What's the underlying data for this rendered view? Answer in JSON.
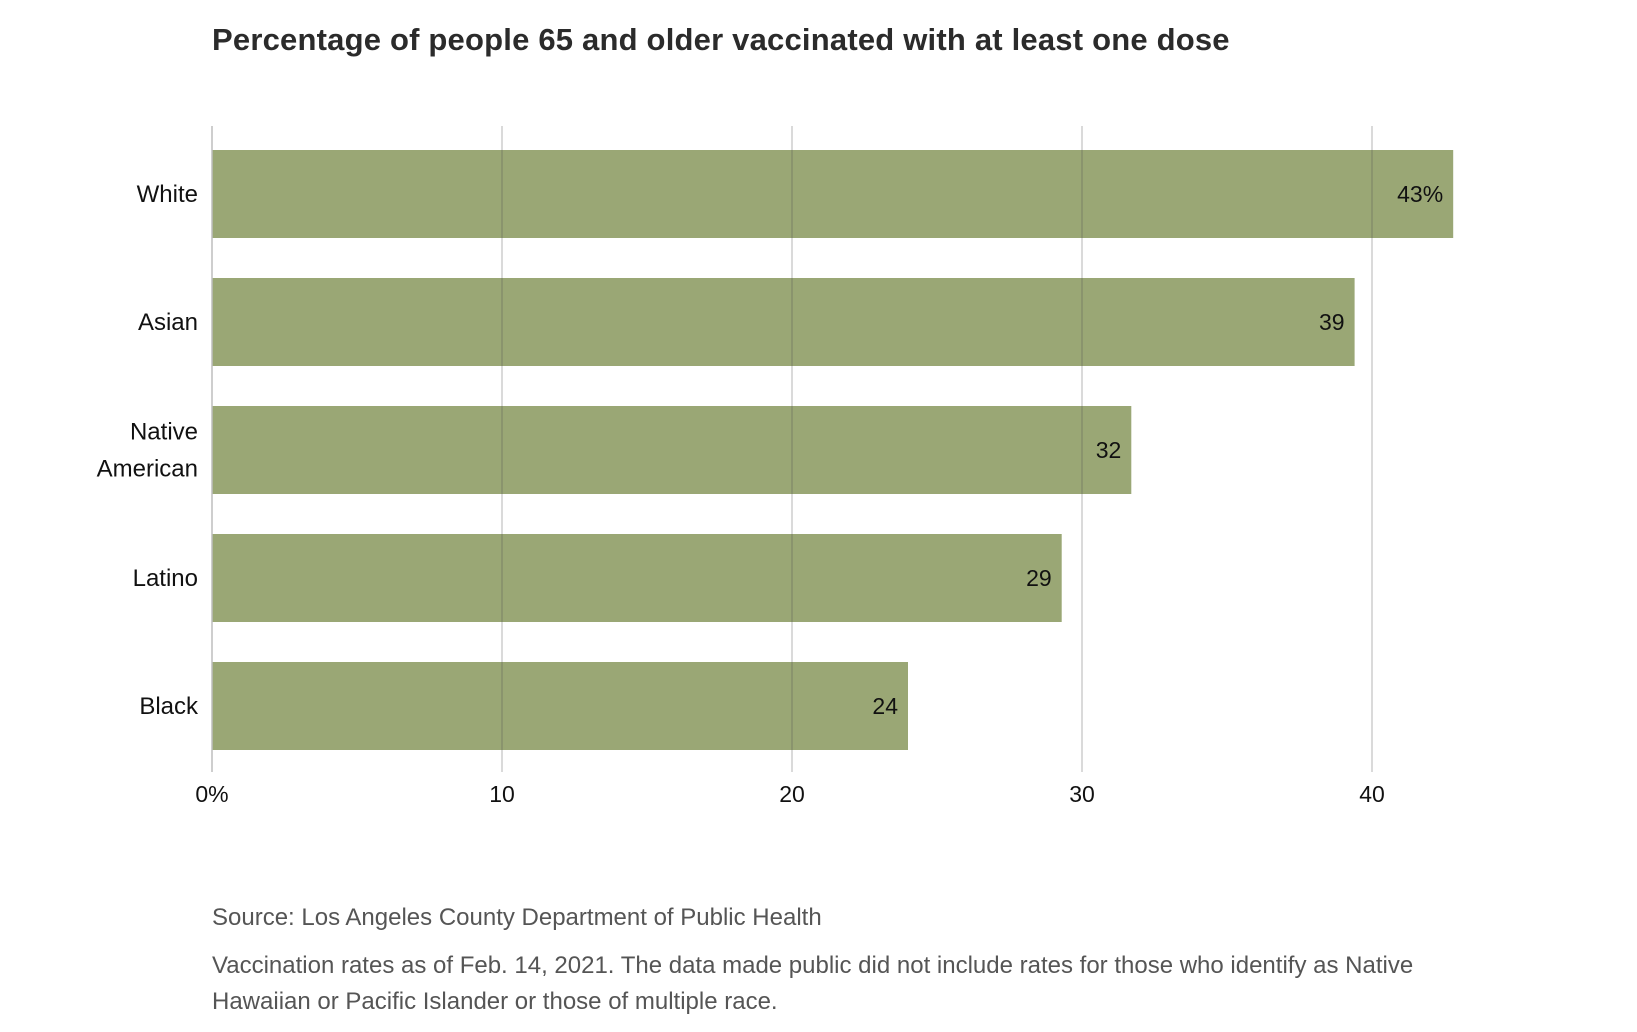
{
  "chart_data": {
    "type": "bar",
    "orientation": "horizontal",
    "title": "Percentage of people 65 and older vaccinated with at least one dose",
    "categories": [
      [
        "White"
      ],
      [
        "Asian"
      ],
      [
        "Native",
        "American"
      ],
      [
        "Latino"
      ],
      [
        "Black"
      ]
    ],
    "values": [
      42.8,
      39.4,
      31.7,
      29.3,
      24
    ],
    "data_labels": [
      "43%",
      "39",
      "32",
      "29",
      "24"
    ],
    "xlim": [
      0,
      45
    ],
    "xticks": [
      0,
      10,
      20,
      30,
      40
    ],
    "xtick_labels": [
      "0%",
      "10",
      "20",
      "30",
      "40"
    ],
    "grid": true,
    "bar_color": "#9aa775",
    "grid_color": "#c8c8c8",
    "xlabel": "",
    "ylabel": ""
  },
  "footnotes": {
    "source": "Source: Los Angeles County Department of Public Health",
    "note": "Vaccination rates as of Feb. 14, 2021. The data made public did not include rates for those who identify as Native Hawaiian or Pacific Islander or those of multiple race."
  }
}
